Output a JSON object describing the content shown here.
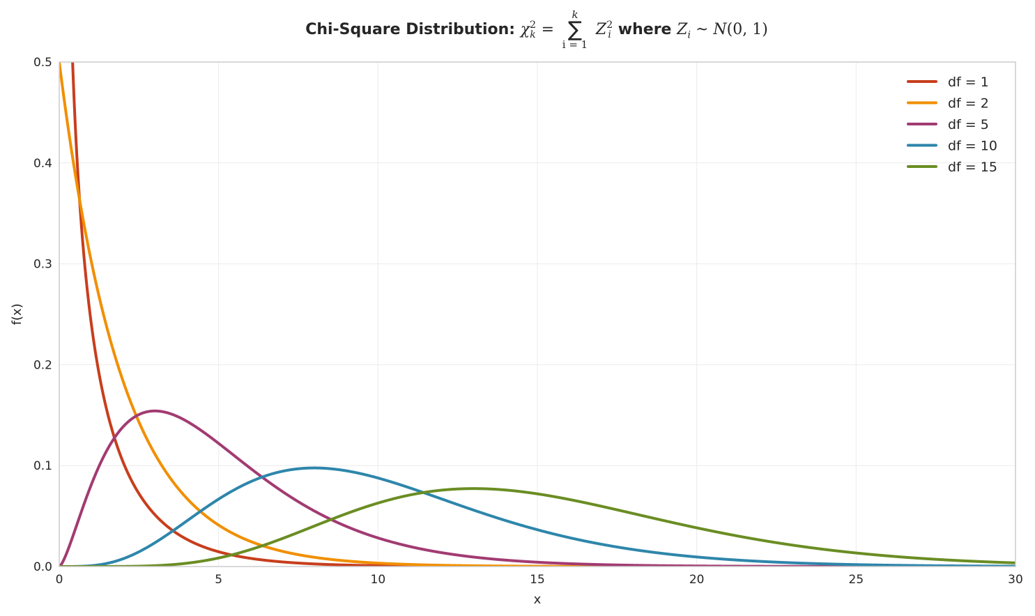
{
  "chart_data": {
    "type": "line",
    "function": "chi-square probability density",
    "title": {
      "text": "Chi-Square Distribution:",
      "chi": "χ",
      "k_sub": "k",
      "two_sup": "2",
      "eq": "=",
      "sum_upper": "k",
      "sum_symbol": "∑",
      "sum_lower": "i = 1",
      "Z": "Z",
      "i_sub": "i",
      "where": "where",
      "Zi": "Z",
      "tilde": "~",
      "N": "N",
      "dist_args": "(0, 1)"
    },
    "xlabel": "x",
    "ylabel": "f(x)",
    "xlim": [
      0,
      30
    ],
    "ylim": [
      0,
      0.5
    ],
    "xticks": [
      "0",
      "5",
      "10",
      "15",
      "20",
      "25",
      "30"
    ],
    "yticks": [
      "0.0",
      "0.1",
      "0.2",
      "0.3",
      "0.4",
      "0.5"
    ],
    "grid": true,
    "legend_position": "top-right",
    "series": [
      {
        "name": "df = 1",
        "df": 1,
        "color": "#C73E1D",
        "peak": null
      },
      {
        "name": "df = 2",
        "df": 2,
        "color": "#F18F01",
        "peak": [
          0,
          0.5
        ]
      },
      {
        "name": "df = 5",
        "df": 5,
        "color": "#A23B72",
        "peak": [
          3,
          0.154
        ]
      },
      {
        "name": "df = 10",
        "df": 10,
        "color": "#2E86AB",
        "peak": [
          8,
          0.098
        ]
      },
      {
        "name": "df = 15",
        "df": 15,
        "color": "#6A8D23",
        "peak": [
          13,
          0.077
        ]
      }
    ]
  }
}
